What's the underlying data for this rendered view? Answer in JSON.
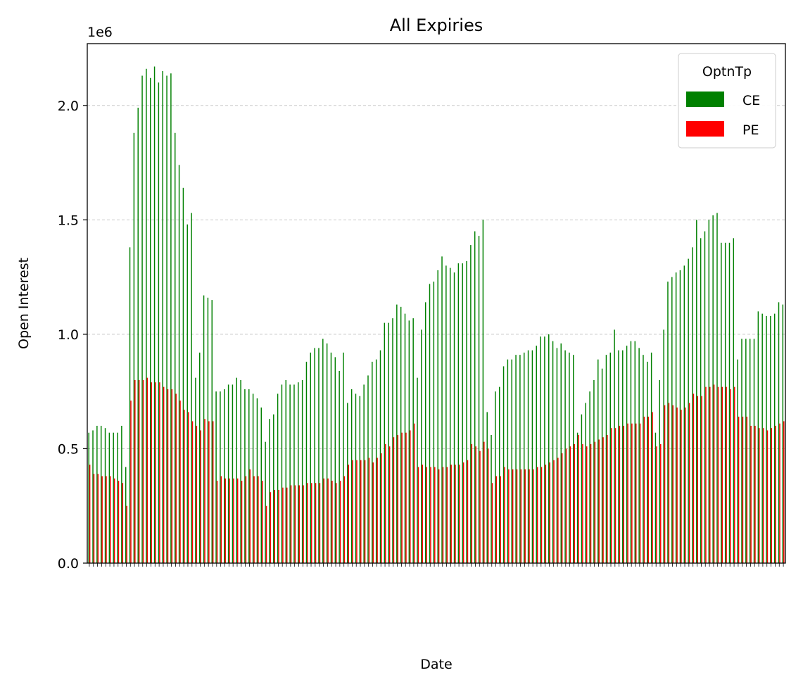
{
  "chart_data": {
    "type": "bar",
    "title": "All Expiries",
    "xlabel": "Date",
    "ylabel": "Open Interest",
    "y_scale_note": "1e6",
    "ylim": [
      0,
      2.27
    ],
    "yticks": [
      "0.0",
      "0.5",
      "1.0",
      "1.5",
      "2.0"
    ],
    "grid": "y-dashed",
    "legend_title": "OptnTp",
    "legend_position": "top-right",
    "series": [
      {
        "name": "CE",
        "color": "#008000",
        "values": [
          0.57,
          0.58,
          0.6,
          0.6,
          0.59,
          0.57,
          0.57,
          0.57,
          0.6,
          0.42,
          1.38,
          1.88,
          1.99,
          2.13,
          2.16,
          2.12,
          2.17,
          2.1,
          2.15,
          2.13,
          2.14,
          1.88,
          1.74,
          1.64,
          1.48,
          1.53,
          0.81,
          0.92,
          1.17,
          1.16,
          1.15,
          0.75,
          0.75,
          0.76,
          0.78,
          0.78,
          0.81,
          0.8,
          0.76,
          0.76,
          0.74,
          0.72,
          0.68,
          0.53,
          0.63,
          0.65,
          0.74,
          0.78,
          0.8,
          0.78,
          0.78,
          0.79,
          0.8,
          0.88,
          0.92,
          0.94,
          0.94,
          0.98,
          0.96,
          0.92,
          0.9,
          0.84,
          0.92,
          0.7,
          0.76,
          0.74,
          0.73,
          0.78,
          0.82,
          0.88,
          0.89,
          0.93,
          1.05,
          1.05,
          1.07,
          1.13,
          1.12,
          1.09,
          1.06,
          1.07,
          0.81,
          1.02,
          1.14,
          1.22,
          1.23,
          1.28,
          1.34,
          1.3,
          1.29,
          1.27,
          1.31,
          1.31,
          1.32,
          1.39,
          1.45,
          1.43,
          1.5,
          0.66,
          0.56,
          0.75,
          0.77,
          0.86,
          0.89,
          0.89,
          0.91,
          0.91,
          0.92,
          0.93,
          0.93,
          0.95,
          0.99,
          0.99,
          1.0,
          0.97,
          0.94,
          0.96,
          0.93,
          0.92,
          0.91,
          0.57,
          0.65,
          0.7,
          0.75,
          0.8,
          0.89,
          0.85,
          0.91,
          0.92,
          1.02,
          0.93,
          0.93,
          0.95,
          0.97,
          0.97,
          0.94,
          0.91,
          0.88,
          0.92,
          0.57,
          0.8,
          1.02,
          1.23,
          1.25,
          1.27,
          1.28,
          1.3,
          1.33,
          1.38,
          1.5,
          1.42,
          1.45,
          1.5,
          1.52,
          1.53,
          1.4,
          1.4,
          1.4,
          1.42,
          0.89,
          0.98,
          0.98,
          0.98,
          0.98,
          1.1,
          1.09,
          1.08,
          1.08,
          1.09,
          1.14,
          1.13
        ]
      },
      {
        "name": "PE",
        "color": "#ff0000",
        "values": [
          0.43,
          0.39,
          0.39,
          0.38,
          0.38,
          0.38,
          0.37,
          0.36,
          0.35,
          0.25,
          0.71,
          0.8,
          0.8,
          0.8,
          0.81,
          0.79,
          0.79,
          0.79,
          0.77,
          0.76,
          0.76,
          0.74,
          0.71,
          0.67,
          0.66,
          0.62,
          0.6,
          0.58,
          0.63,
          0.62,
          0.62,
          0.36,
          0.38,
          0.37,
          0.37,
          0.37,
          0.37,
          0.36,
          0.38,
          0.41,
          0.38,
          0.38,
          0.36,
          0.25,
          0.31,
          0.32,
          0.32,
          0.33,
          0.33,
          0.34,
          0.34,
          0.34,
          0.34,
          0.35,
          0.35,
          0.35,
          0.35,
          0.37,
          0.37,
          0.36,
          0.35,
          0.36,
          0.38,
          0.43,
          0.45,
          0.45,
          0.45,
          0.45,
          0.46,
          0.44,
          0.46,
          0.48,
          0.52,
          0.51,
          0.55,
          0.56,
          0.57,
          0.57,
          0.58,
          0.61,
          0.42,
          0.43,
          0.42,
          0.42,
          0.42,
          0.41,
          0.42,
          0.42,
          0.43,
          0.43,
          0.43,
          0.44,
          0.45,
          0.52,
          0.51,
          0.49,
          0.53,
          0.5,
          0.35,
          0.38,
          0.38,
          0.42,
          0.41,
          0.41,
          0.41,
          0.41,
          0.41,
          0.41,
          0.41,
          0.42,
          0.42,
          0.43,
          0.44,
          0.45,
          0.46,
          0.48,
          0.5,
          0.51,
          0.52,
          0.56,
          0.52,
          0.51,
          0.52,
          0.53,
          0.54,
          0.55,
          0.56,
          0.59,
          0.59,
          0.6,
          0.6,
          0.61,
          0.61,
          0.61,
          0.61,
          0.64,
          0.64,
          0.66,
          0.51,
          0.52,
          0.69,
          0.7,
          0.69,
          0.68,
          0.67,
          0.68,
          0.7,
          0.74,
          0.73,
          0.73,
          0.77,
          0.77,
          0.78,
          0.77,
          0.77,
          0.77,
          0.76,
          0.77,
          0.64,
          0.64,
          0.64,
          0.6,
          0.6,
          0.59,
          0.59,
          0.58,
          0.59,
          0.6,
          0.61,
          0.62
        ]
      }
    ]
  }
}
